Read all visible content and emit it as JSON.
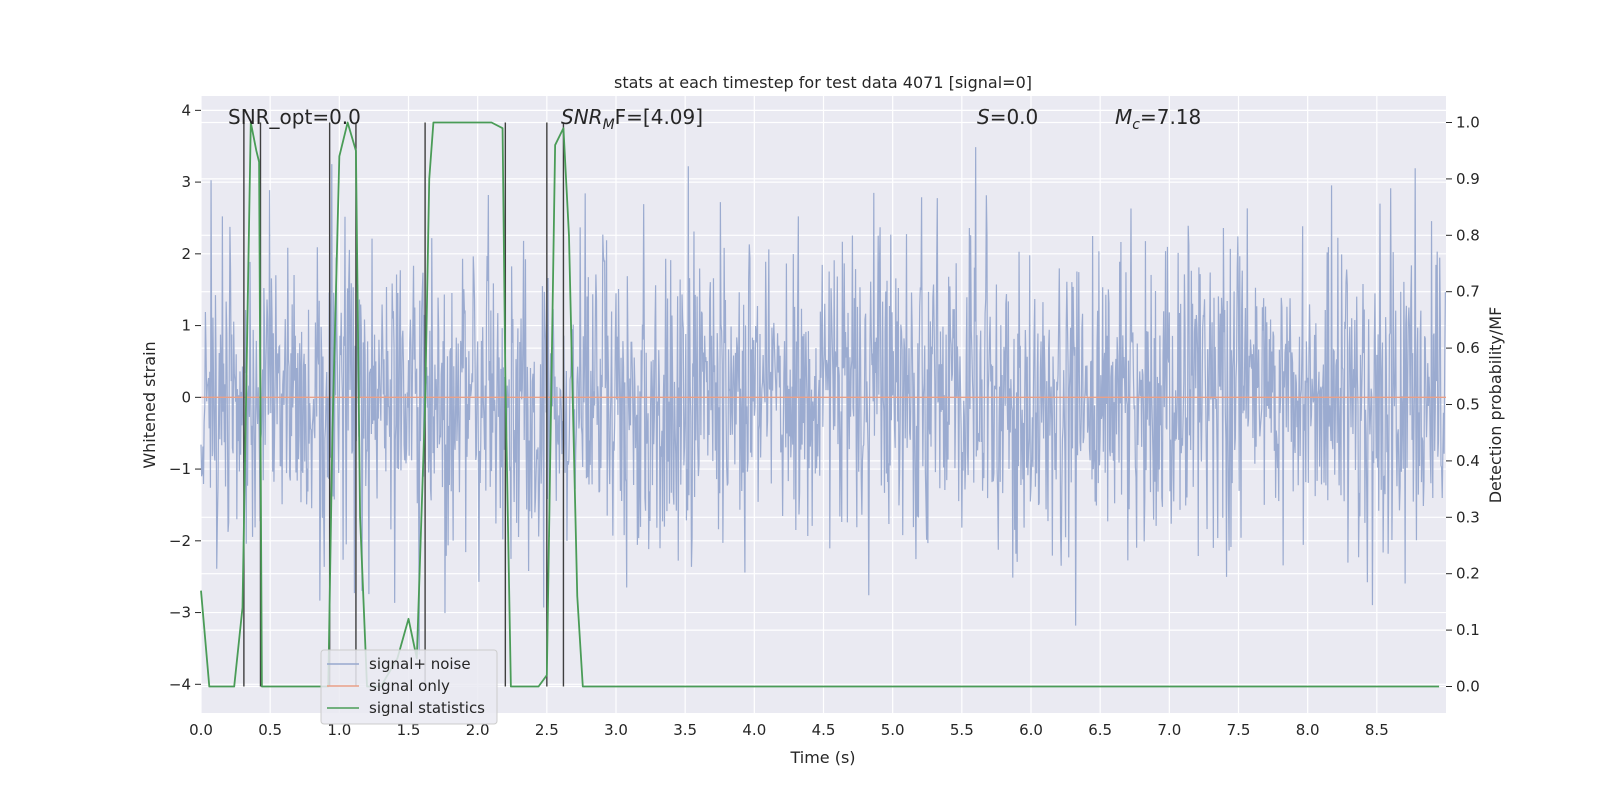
{
  "chart_data": {
    "type": "line",
    "title": "stats at each timestep for test data 4071 [signal=0]",
    "xlabel": "Time (s)",
    "ylabel": "Whitened strain",
    "y2label": "Detection probability/MF",
    "xlim": [
      0.0,
      9.0
    ],
    "ylim": [
      -4.4,
      4.2
    ],
    "y2lim": [
      -0.047,
      1.047
    ],
    "xticks": [
      "0.0",
      "0.5",
      "1.0",
      "1.5",
      "2.0",
      "2.5",
      "3.0",
      "3.5",
      "4.0",
      "4.5",
      "5.0",
      "5.5",
      "6.0",
      "6.5",
      "7.0",
      "7.5",
      "8.0",
      "8.5"
    ],
    "yticks": [
      "−4",
      "−3",
      "−2",
      "−1",
      "0",
      "1",
      "2",
      "3",
      "4"
    ],
    "y2ticks": [
      "0.0",
      "0.1",
      "0.2",
      "0.3",
      "0.4",
      "0.5",
      "0.6",
      "0.7",
      "0.8",
      "0.9",
      "1.0"
    ],
    "grid": true,
    "legend_position": "lower-left",
    "annotations": {
      "snr_opt": "SNR_opt=0.0",
      "snr_mf_base": "SNR",
      "snr_mf_sub": "M",
      "snr_mf_rest": "F=[4.09]",
      "s_label": "S",
      "s_value": "=0.0",
      "mc_base": "M",
      "mc_sub": "c",
      "mc_value": "=7.18"
    },
    "series": [
      {
        "name": "signal+ noise",
        "color": "#97a8ce",
        "kind": "noise",
        "sample_rate": 220,
        "std": 1.05,
        "seed": 4071,
        "yrange": [
          -3.7,
          3.8
        ]
      },
      {
        "name": "signal only",
        "color": "#e9a088",
        "kind": "line",
        "x": [
          0.0,
          9.0
        ],
        "y": [
          0.0,
          0.0
        ]
      },
      {
        "name": "signal statistics",
        "color": "#4a9c57",
        "kind": "line",
        "axis": "right",
        "x": [
          0.0,
          0.06,
          0.12,
          0.18,
          0.24,
          0.3,
          0.36,
          0.4,
          0.42,
          0.44,
          0.5,
          0.56,
          0.62,
          0.68,
          0.74,
          0.8,
          0.86,
          0.92,
          0.95,
          1.0,
          1.06,
          1.12,
          1.15,
          1.2,
          1.3,
          1.42,
          1.5,
          1.56,
          1.62,
          1.65,
          1.68,
          1.8,
          1.95,
          2.1,
          2.18,
          2.2,
          2.24,
          2.3,
          2.36,
          2.44,
          2.5,
          2.56,
          2.62,
          2.66,
          2.72,
          2.76,
          3.0,
          4.0,
          5.0,
          6.0,
          7.0,
          8.0,
          8.95
        ],
        "y": [
          0.17,
          0.0,
          0.0,
          0.0,
          0.0,
          0.14,
          1.0,
          0.95,
          0.93,
          0.0,
          0.0,
          0.0,
          0.0,
          0.0,
          0.0,
          0.0,
          0.0,
          0.0,
          0.45,
          0.94,
          1.0,
          0.95,
          0.3,
          0.0,
          0.0,
          0.05,
          0.12,
          0.05,
          0.5,
          0.9,
          1.0,
          1.0,
          1.0,
          1.0,
          0.99,
          0.55,
          0.0,
          0.0,
          0.0,
          0.0,
          0.02,
          0.96,
          0.99,
          0.8,
          0.16,
          0.0,
          0.0,
          0.0,
          0.0,
          0.0,
          0.0,
          0.0,
          0.0
        ]
      }
    ],
    "vertical_markers": {
      "color": "#3f3f3f",
      "x": [
        0.31,
        0.43,
        0.93,
        1.12,
        1.62,
        2.2,
        2.5,
        2.62
      ]
    }
  }
}
